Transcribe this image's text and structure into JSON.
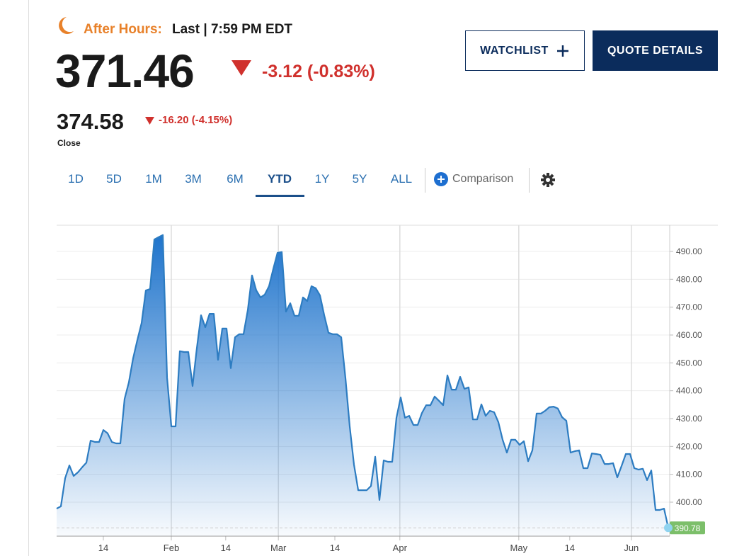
{
  "header": {
    "session": "After Hours:",
    "last_time": "Last | 7:59 PM EDT",
    "price": "371.46",
    "change": "-3.12 (-0.83%)",
    "close_price": "374.58",
    "close_change": "-16.20 (-4.15%)",
    "close_label": "Close"
  },
  "buttons": [
    "WATCHLIST",
    "QUOTE DETAILS"
  ],
  "tabs": {
    "items": [
      "1D",
      "5D",
      "1M",
      "3M",
      "6M",
      "YTD",
      "1Y",
      "5Y",
      "ALL"
    ],
    "selected": "YTD"
  },
  "comparison": "Comparison",
  "chart_data": {
    "type": "area",
    "color": "#2d7cc1",
    "fill_color": "#1f74cc",
    "last_color": "#8fd3ef",
    "last_label_color": "#7cbf6a",
    "x": [
      0,
      1,
      2,
      3,
      4,
      5,
      6,
      7,
      8,
      9,
      10,
      11,
      12,
      13,
      14,
      15,
      16,
      17,
      18,
      19,
      20,
      21,
      22,
      23,
      24,
      25,
      26,
      27,
      28,
      29,
      30,
      31,
      32,
      33,
      34,
      35,
      36,
      37,
      38,
      39,
      40,
      41,
      42,
      43,
      44,
      45,
      46,
      47,
      48,
      49,
      50,
      51,
      52,
      53,
      54,
      55,
      56,
      57,
      58,
      59,
      60,
      61,
      62,
      63,
      64,
      65,
      66,
      67,
      68,
      69,
      70,
      71,
      72,
      73,
      74,
      75,
      76,
      77,
      78,
      79,
      80,
      81,
      82,
      83,
      84,
      85,
      86,
      87,
      88,
      89,
      90,
      91,
      92,
      93,
      94,
      95,
      96,
      97,
      98,
      99,
      100,
      101,
      102,
      103,
      104,
      105,
      106,
      107,
      108,
      109,
      110,
      111,
      112,
      113,
      114,
      115,
      116,
      117,
      118,
      119,
      120,
      121,
      122,
      123,
      124,
      125,
      126,
      127,
      128,
      129,
      130,
      131,
      132,
      133,
      134,
      135,
      136,
      137,
      138,
      139,
      140,
      141,
      142,
      143,
      144
    ],
    "values": [
      397.7,
      398.5,
      408.6,
      413.2,
      409.4,
      410.7,
      412.5,
      414.2,
      422.1,
      421.6,
      421.6,
      425.9,
      424.7,
      421.6,
      421.1,
      421.1,
      437.1,
      443.0,
      451.6,
      458.2,
      464.3,
      476.0,
      476.5,
      494.3,
      495.1,
      495.9,
      444.7,
      427.2,
      427.2,
      454.2,
      453.9,
      453.9,
      441.7,
      455.2,
      467.1,
      462.8,
      467.6,
      467.6,
      451.1,
      462.3,
      462.3,
      448.1,
      459.2,
      460.3,
      460.3,
      468.9,
      481.4,
      476.0,
      473.5,
      474.5,
      477.5,
      483.7,
      489.5,
      489.8,
      468.4,
      471.4,
      466.9,
      466.9,
      473.5,
      472.2,
      477.5,
      476.8,
      474.2,
      467.1,
      460.8,
      460.3,
      460.3,
      459.2,
      444.5,
      427.2,
      413.5,
      404.3,
      404.3,
      404.3,
      405.8,
      416.3,
      400.8,
      415.0,
      414.5,
      414.5,
      430.3,
      437.6,
      430.3,
      431.0,
      427.7,
      427.7,
      432.0,
      434.8,
      434.8,
      437.9,
      436.4,
      434.8,
      445.5,
      440.4,
      440.4,
      445.0,
      440.7,
      441.2,
      429.7,
      429.7,
      435.1,
      431.0,
      432.8,
      432.3,
      428.7,
      422.4,
      417.8,
      422.4,
      422.4,
      420.6,
      421.9,
      414.7,
      418.6,
      431.8,
      431.8,
      432.8,
      434.1,
      434.3,
      433.6,
      430.5,
      429.2,
      417.8,
      418.3,
      418.6,
      412.2,
      412.2,
      417.5,
      417.3,
      417.0,
      413.7,
      413.7,
      414.0,
      408.9,
      413.0,
      417.3,
      417.3,
      412.2,
      411.7,
      412.0,
      407.9,
      411.4,
      397.2,
      397.2,
      397.7,
      390.78
    ],
    "xlim": [
      0,
      144
    ],
    "xticks": [
      {
        "value": 11,
        "label": "14"
      },
      {
        "value": 27,
        "label": "Feb"
      },
      {
        "value": 39.8,
        "label": "14"
      },
      {
        "value": 52.2,
        "label": "Mar"
      },
      {
        "value": 65.5,
        "label": "14"
      },
      {
        "value": 80.8,
        "label": "Apr"
      },
      {
        "value": 108.8,
        "label": "May"
      },
      {
        "value": 120.8,
        "label": "14"
      },
      {
        "value": 135.3,
        "label": "Jun"
      }
    ],
    "ylim": [
      387.8,
      499.4
    ],
    "yticks": [
      {
        "value": 400,
        "label": "400.00"
      },
      {
        "value": 410,
        "label": "410.00"
      },
      {
        "value": 420,
        "label": "420.00"
      },
      {
        "value": 430,
        "label": "430.00"
      },
      {
        "value": 440,
        "label": "440.00"
      },
      {
        "value": 450,
        "label": "450.00"
      },
      {
        "value": 460,
        "label": "460.00"
      },
      {
        "value": 470,
        "label": "470.00"
      },
      {
        "value": 480,
        "label": "480.00"
      },
      {
        "value": 490,
        "label": "490.00"
      }
    ],
    "grid": true
  }
}
